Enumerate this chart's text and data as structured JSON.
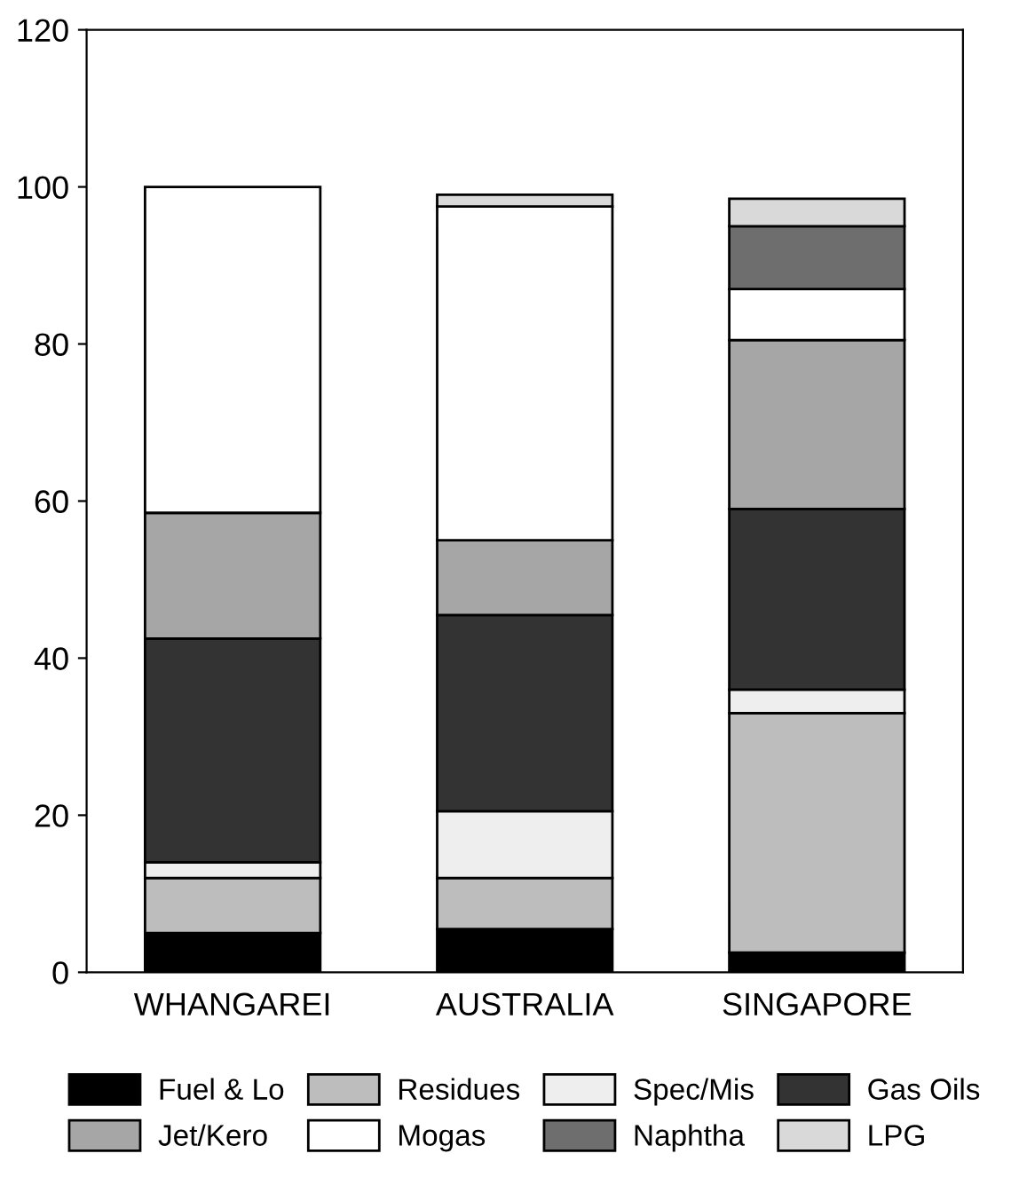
{
  "chart_data": {
    "type": "bar",
    "stacked": true,
    "categories": [
      "WHANGAREI",
      "AUSTRALIA",
      "SINGAPORE"
    ],
    "series": [
      {
        "name": "Fuel & Lo",
        "color": "#000000",
        "values": [
          5,
          5.5,
          2.5
        ]
      },
      {
        "name": "Residues",
        "color": "#bdbdbd",
        "values": [
          7,
          6.5,
          30.5
        ]
      },
      {
        "name": "Spec/Mis",
        "color": "#eeeeee",
        "values": [
          2,
          8.5,
          3
        ]
      },
      {
        "name": "Gas Oils",
        "color": "#333333",
        "values": [
          28.5,
          25,
          23
        ]
      },
      {
        "name": "Jet/Kero",
        "color": "#a6a6a6",
        "values": [
          16,
          9.5,
          21.5
        ]
      },
      {
        "name": "Mogas",
        "color": "#ffffff",
        "values": [
          41.5,
          42.5,
          6.5
        ]
      },
      {
        "name": "Naphtha",
        "color": "#6e6e6e",
        "values": [
          null,
          null,
          8
        ]
      },
      {
        "name": "LPG",
        "color": "#d9d9d9",
        "values": [
          null,
          1.5,
          3.5
        ]
      }
    ],
    "ylim": [
      0,
      120
    ],
    "yticks": [
      0,
      20,
      40,
      60,
      80,
      100,
      120
    ],
    "legend": "bottom"
  }
}
